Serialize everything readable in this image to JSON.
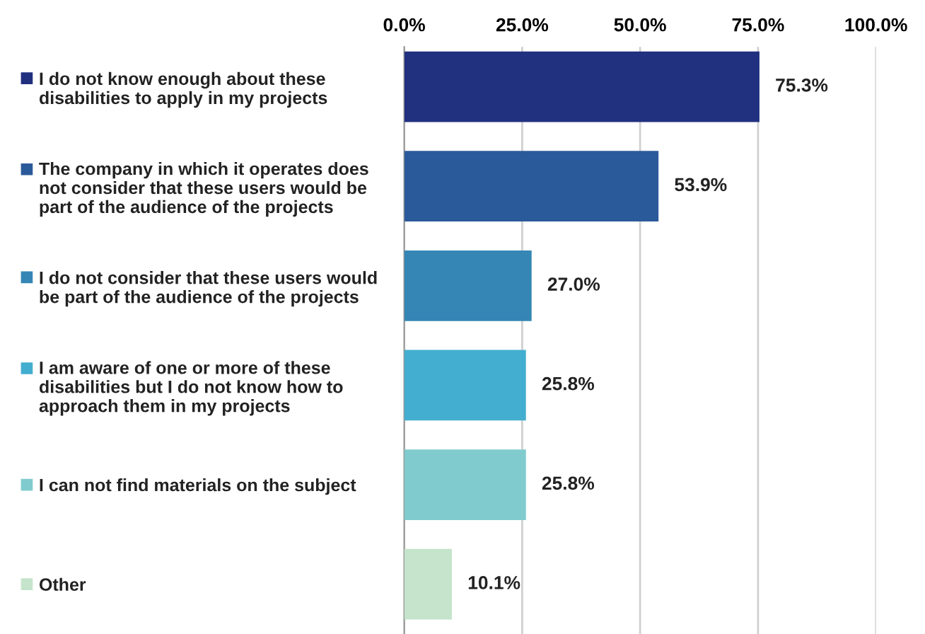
{
  "chart_data": {
    "type": "bar",
    "orientation": "horizontal",
    "categories": [
      "I do not know enough about these\ndisabilities to apply in my projects",
      "The company in which it operates does\nnot consider that these users would be\npart of the audience of the projects",
      "I do not consider that these users would\nbe part of the audience of the projects",
      "I am aware of one or more of these\ndisabilities but I do not know how to\napproach them in my projects",
      "I can not find materials on the subject",
      "Other"
    ],
    "values": [
      75.3,
      53.9,
      27.0,
      25.8,
      25.8,
      10.1
    ],
    "value_labels": [
      "75.3%",
      "53.9%",
      "27.0%",
      "25.8%",
      "25.8%",
      "10.1%"
    ],
    "colors": [
      "#21307f",
      "#2b5a9a",
      "#3586b5",
      "#43aecf",
      "#80cbce",
      "#c5e4cb"
    ],
    "xlim": [
      0,
      100
    ],
    "xticks": [
      {
        "value": 0,
        "label": "0.0%"
      },
      {
        "value": 25,
        "label": "25.0%"
      },
      {
        "value": 50,
        "label": "50.0%"
      },
      {
        "value": 75,
        "label": "75.0%"
      },
      {
        "value": 100,
        "label": "100.0%"
      }
    ],
    "grid": "x"
  }
}
